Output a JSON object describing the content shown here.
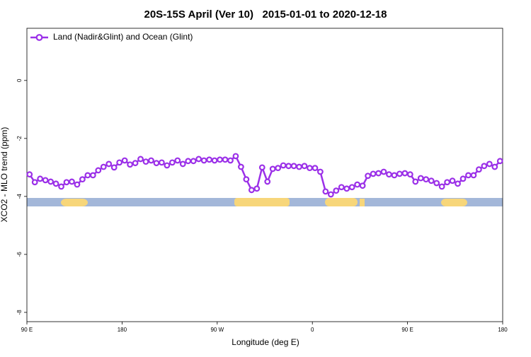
{
  "chart_data": {
    "type": "line",
    "title": "20S-15S April (Ver 10)   2015-01-01 to 2020-12-18",
    "x_label": "Longitude (deg E)",
    "y_label": "XCO2 - MLO trend (ppm)",
    "x": [
      92.5,
      97.5,
      102.5,
      107.5,
      112.5,
      117.5,
      122.5,
      127.5,
      132.5,
      137.5,
      142.5,
      147.5,
      152.5,
      157.5,
      162.5,
      167.5,
      172.5,
      177.5,
      182.5,
      187.5,
      192.5,
      197.5,
      202.5,
      207.5,
      212.5,
      217.5,
      222.5,
      227.5,
      232.5,
      237.5,
      242.5,
      247.5,
      252.5,
      257.5,
      262.5,
      267.5,
      272.5,
      277.5,
      282.5,
      287.5,
      292.5,
      297.5,
      302.5,
      307.5,
      312.5,
      317.5,
      322.5,
      327.5,
      332.5,
      337.5,
      342.5,
      347.5,
      352.5,
      357.5,
      362.5,
      367.5,
      372.5,
      377.5,
      382.5,
      387.5,
      392.5,
      397.5,
      402.5,
      407.5,
      412.5,
      417.5,
      422.5,
      427.5,
      432.5,
      437.5,
      442.5,
      447.5,
      452.5,
      457.5,
      462.5,
      467.5,
      472.5,
      477.5,
      482.5,
      487.5,
      492.5,
      497.5,
      502.5,
      507.5,
      512.5,
      517.5,
      522.5,
      527.5,
      532.5,
      537.5
    ],
    "series": [
      {
        "name": "Land (Nadir&Glint) and Ocean (Glint)",
        "color": "#9b30e8",
        "values": [
          -3.24,
          -3.51,
          -3.39,
          -3.44,
          -3.49,
          -3.56,
          -3.66,
          -3.51,
          -3.49,
          -3.59,
          -3.41,
          -3.27,
          -3.27,
          -3.1,
          -2.98,
          -2.88,
          -3.0,
          -2.83,
          -2.76,
          -2.9,
          -2.85,
          -2.71,
          -2.8,
          -2.76,
          -2.85,
          -2.83,
          -2.93,
          -2.83,
          -2.76,
          -2.88,
          -2.78,
          -2.78,
          -2.71,
          -2.76,
          -2.73,
          -2.76,
          -2.73,
          -2.73,
          -2.76,
          -2.61,
          -2.98,
          -3.41,
          -3.78,
          -3.73,
          -3.0,
          -3.49,
          -3.05,
          -3.02,
          -2.93,
          -2.95,
          -2.95,
          -2.98,
          -2.95,
          -3.02,
          -3.02,
          -3.15,
          -3.83,
          -3.93,
          -3.8,
          -3.68,
          -3.73,
          -3.68,
          -3.59,
          -3.63,
          -3.29,
          -3.22,
          -3.2,
          -3.15,
          -3.24,
          -3.27,
          -3.22,
          -3.2,
          -3.24,
          -3.49,
          -3.37,
          -3.41,
          -3.46,
          -3.54,
          -3.66,
          -3.51,
          -3.46,
          -3.56,
          -3.39,
          -3.27,
          -3.27,
          -3.07,
          -2.95,
          -2.88,
          -2.98,
          -2.78
        ]
      }
    ],
    "xlim": [
      90,
      540
    ],
    "xticks": [
      {
        "value": 90,
        "label": "90 E"
      },
      180,
      {
        "value": 270,
        "label": "90 W"
      },
      {
        "value": 360,
        "label": "0"
      },
      {
        "value": 450,
        "label": "90 E"
      },
      {
        "value": 540,
        "label": "180"
      }
    ],
    "ylim": [
      -8.32,
      1.8
    ],
    "yticks": [
      0,
      -2,
      -4,
      -6,
      -8
    ],
    "legend": "top-left"
  }
}
